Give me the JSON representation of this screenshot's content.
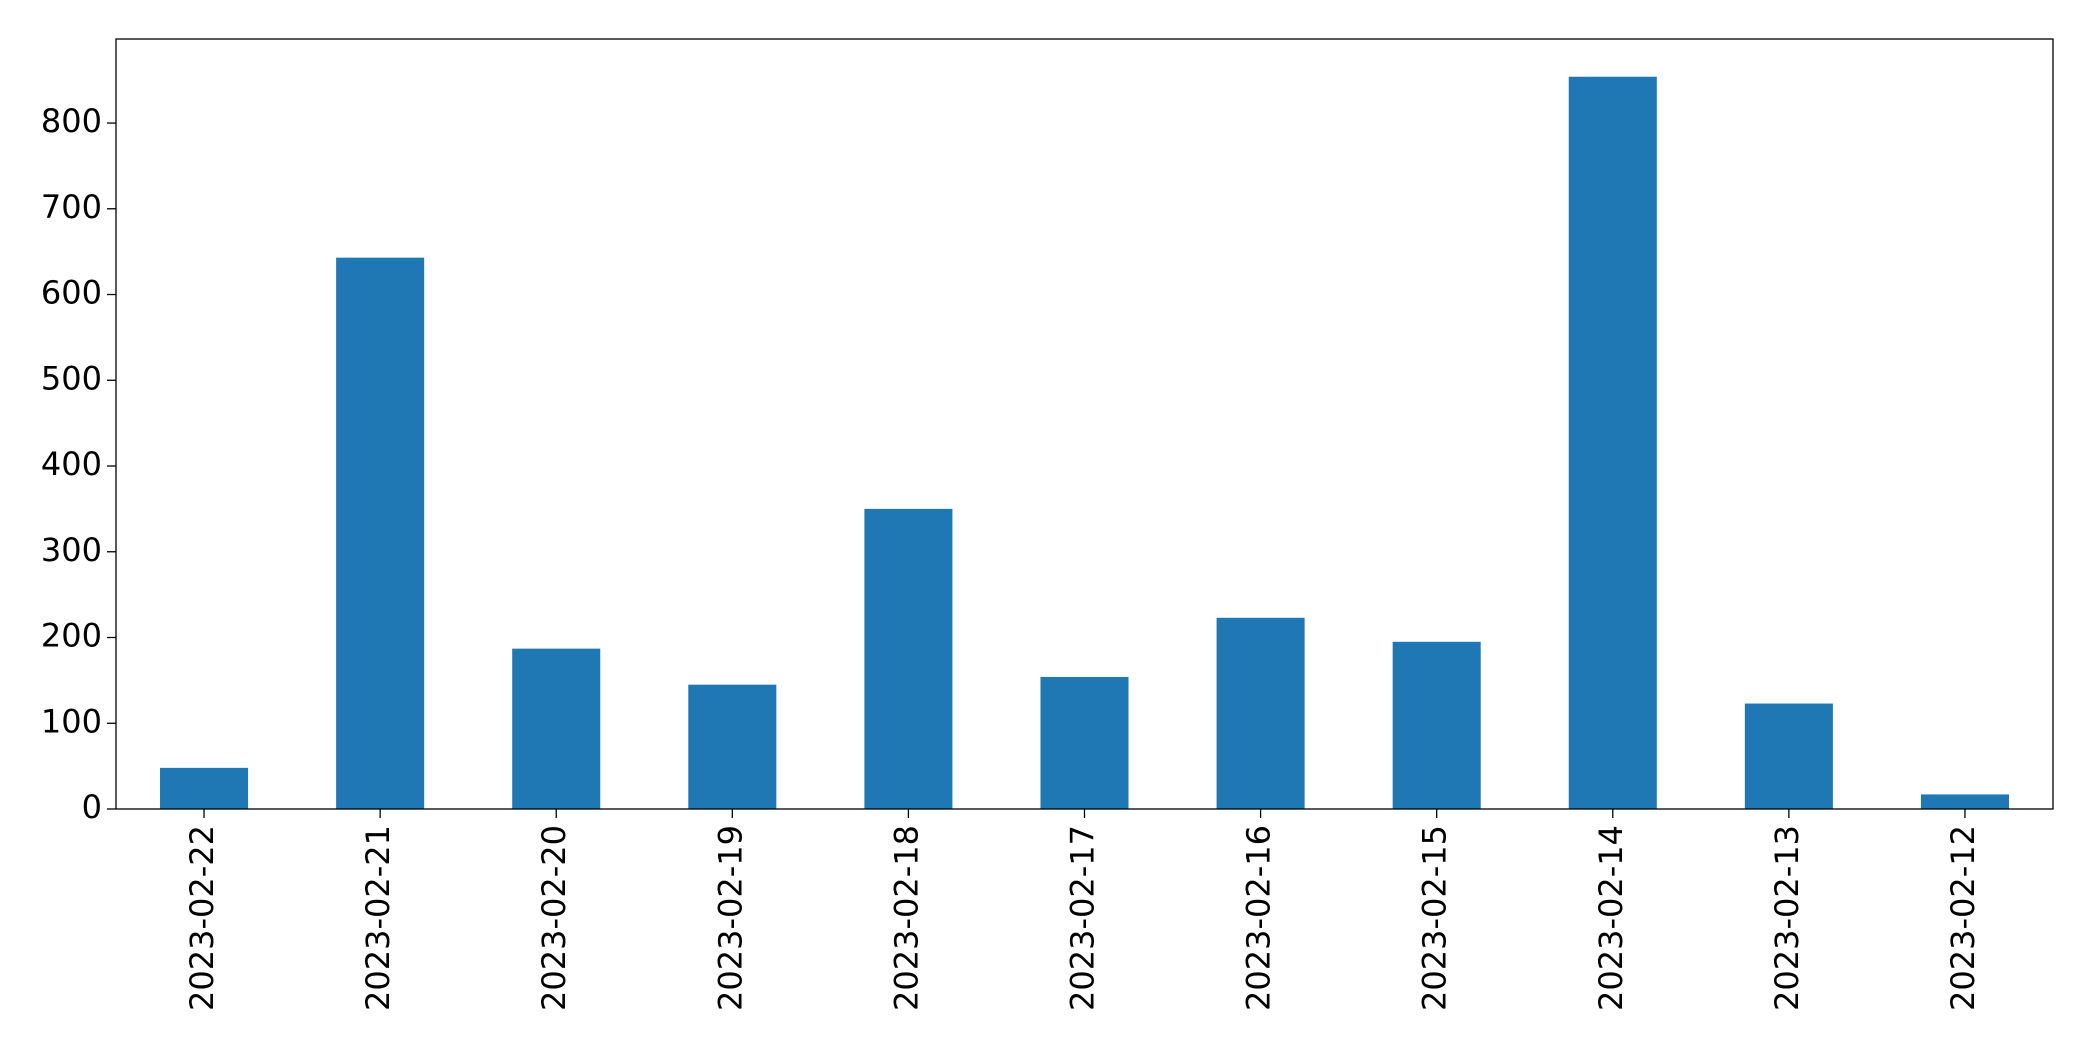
{
  "chart_data": {
    "type": "bar",
    "categories": [
      "2023-02-22",
      "2023-02-21",
      "2023-02-20",
      "2023-02-19",
      "2023-02-18",
      "2023-02-17",
      "2023-02-16",
      "2023-02-15",
      "2023-02-14",
      "2023-02-13",
      "2023-02-12"
    ],
    "values": [
      48,
      643,
      187,
      145,
      350,
      154,
      223,
      195,
      854,
      123,
      17
    ],
    "color": "#1f77b4",
    "ylim": [
      0,
      898
    ],
    "yticks": [
      0,
      100,
      200,
      300,
      400,
      500,
      600,
      700,
      800
    ],
    "grid": false
  }
}
